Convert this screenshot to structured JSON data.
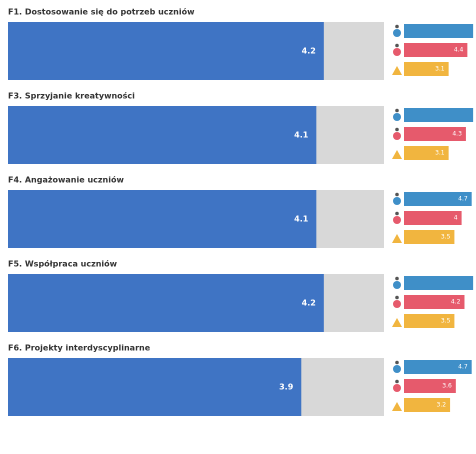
{
  "chart_data": [
    {
      "type": "bar",
      "title": "F1. Dostosowanie się do potrzeb uczniów",
      "values": [
        4.2
      ],
      "color": "#3f74c4",
      "xlim": [
        0,
        5
      ],
      "breakdown": {
        "colors": [
          "#3f8fc8",
          "#e65a6c",
          "#f1b53f"
        ],
        "values": [
          4.8,
          4.4,
          3.1
        ],
        "value_labels": [
          null,
          "4.4",
          "3.1"
        ],
        "xlim": [
          0,
          5
        ]
      }
    },
    {
      "type": "bar",
      "title": "F3. Sprzyjanie kreatywności",
      "values": [
        4.1
      ],
      "color": "#3f74c4",
      "xlim": [
        0,
        5
      ],
      "breakdown": {
        "colors": [
          "#3f8fc8",
          "#e65a6c",
          "#f1b53f"
        ],
        "values": [
          4.8,
          4.3,
          3.1
        ],
        "value_labels": [
          null,
          "4.3",
          "3.1"
        ],
        "xlim": [
          0,
          5
        ]
      }
    },
    {
      "type": "bar",
      "title": "F4. Angażowanie uczniów",
      "values": [
        4.1
      ],
      "color": "#3f74c4",
      "xlim": [
        0,
        5
      ],
      "breakdown": {
        "colors": [
          "#3f8fc8",
          "#e65a6c",
          "#f1b53f"
        ],
        "values": [
          4.7,
          4,
          3.5
        ],
        "value_labels": [
          "4.7",
          "4",
          "3.5"
        ],
        "xlim": [
          0,
          5
        ]
      }
    },
    {
      "type": "bar",
      "title": "F5. Współpraca uczniów",
      "values": [
        4.2
      ],
      "color": "#3f74c4",
      "xlim": [
        0,
        5
      ],
      "breakdown": {
        "colors": [
          "#3f8fc8",
          "#e65a6c",
          "#f1b53f"
        ],
        "values": [
          4.8,
          4.2,
          3.5
        ],
        "value_labels": [
          null,
          "4.2",
          "3.5"
        ],
        "xlim": [
          0,
          5
        ]
      }
    },
    {
      "type": "bar",
      "title": "F6. Projekty interdyscyplinarne",
      "values": [
        3.9
      ],
      "color": "#3f74c4",
      "xlim": [
        0,
        5
      ],
      "breakdown": {
        "colors": [
          "#3f8fc8",
          "#e65a6c",
          "#f1b53f"
        ],
        "values": [
          4.7,
          3.6,
          3.2
        ],
        "value_labels": [
          "4.7",
          "3.6",
          "3.2"
        ],
        "xlim": [
          0,
          5
        ]
      }
    }
  ]
}
